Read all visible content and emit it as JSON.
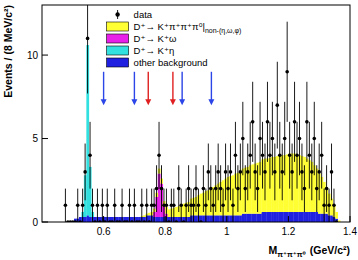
{
  "chart_data": {
    "type": "histogram",
    "stacked": true,
    "y_label": "Events / (8 MeV/c²)",
    "x_label": "M",
    "x_label_sub": "π⁺π⁺π⁰",
    "x_label_unit": "(GeV/c²)",
    "xlim": [
      0.4,
      1.4
    ],
    "ylim": [
      0,
      13
    ],
    "xticks": [
      0.6,
      0.8,
      1,
      1.2,
      1.4
    ],
    "yticks": [
      0,
      5,
      10
    ],
    "legend": "upper left",
    "bins": [
      0.4,
      0.408,
      0.416,
      0.424,
      0.432,
      0.44,
      0.448,
      0.456,
      0.464,
      0.472,
      0.48,
      0.488,
      0.496,
      0.504,
      0.512,
      0.52,
      0.528,
      0.536,
      0.544,
      0.552,
      0.56,
      0.568,
      0.576,
      0.584,
      0.592,
      0.6,
      0.608,
      0.616,
      0.624,
      0.632,
      0.64,
      0.648,
      0.656,
      0.664,
      0.672,
      0.68,
      0.688,
      0.696,
      0.704,
      0.712,
      0.72,
      0.728,
      0.736,
      0.744,
      0.752,
      0.76,
      0.768,
      0.776,
      0.784,
      0.792,
      0.8,
      0.808,
      0.816,
      0.824,
      0.832,
      0.84,
      0.848,
      0.856,
      0.864,
      0.872,
      0.88,
      0.888,
      0.896,
      0.904,
      0.912,
      0.92,
      0.928,
      0.936,
      0.944,
      0.952,
      0.96,
      0.968,
      0.976,
      0.984,
      0.992,
      1.0,
      1.008,
      1.016,
      1.024,
      1.032,
      1.04,
      1.048,
      1.056,
      1.064,
      1.072,
      1.08,
      1.088,
      1.096,
      1.104,
      1.112,
      1.12,
      1.128,
      1.136,
      1.144,
      1.152,
      1.16,
      1.168,
      1.176,
      1.184,
      1.192,
      1.2,
      1.208,
      1.216,
      1.224,
      1.232,
      1.24,
      1.248,
      1.256,
      1.264,
      1.272,
      1.28,
      1.288,
      1.296,
      1.304,
      1.312,
      1.32,
      1.328,
      1.336,
      1.344,
      1.352,
      1.36,
      1.368,
      1.376,
      1.384,
      1.392,
      1.4
    ],
    "series": [
      {
        "name": "data",
        "type": "scatter",
        "marker": "circle",
        "color": "#000000",
        "values": [
          null,
          null,
          null,
          null,
          null,
          null,
          null,
          null,
          null,
          1,
          0,
          0,
          0,
          0,
          1,
          0,
          1,
          3,
          11,
          4,
          1,
          0,
          1,
          0,
          1,
          0,
          1,
          0,
          0,
          1,
          0,
          0,
          1,
          0,
          0,
          1,
          0,
          1,
          0,
          0,
          1,
          0,
          1,
          0,
          1,
          1,
          2,
          4,
          2,
          1,
          1,
          0,
          1,
          1,
          0,
          2,
          1,
          0,
          1,
          2,
          1,
          1,
          2,
          1,
          0,
          2,
          1,
          3,
          2,
          1,
          2,
          3,
          2,
          1,
          3,
          2,
          3,
          1,
          4,
          2,
          3,
          5,
          2,
          3,
          4,
          6,
          3,
          2,
          5,
          4,
          3,
          6,
          4,
          5,
          3,
          7,
          4,
          3,
          5,
          9,
          4,
          3,
          6,
          4,
          5,
          3,
          2,
          6,
          4,
          3,
          5,
          2,
          3,
          4,
          1,
          2,
          1,
          3,
          1,
          0,
          null,
          null,
          null,
          null,
          null
        ],
        "errors": [
          null,
          null,
          null,
          null,
          null,
          null,
          null,
          null,
          null,
          1,
          0,
          0,
          0,
          0,
          1,
          0,
          1,
          1.7,
          3.3,
          2,
          1,
          0,
          1,
          0,
          1,
          0,
          1,
          0,
          0,
          1,
          0,
          0,
          1,
          0,
          0,
          1,
          0,
          1,
          0,
          0,
          1,
          0,
          1,
          0,
          1,
          1,
          1.4,
          2,
          1.4,
          1,
          1,
          0,
          1,
          1,
          0,
          1.4,
          1,
          0,
          1,
          1.4,
          1,
          1,
          1.4,
          1,
          0,
          1.4,
          1,
          1.7,
          1.4,
          1,
          1.4,
          1.7,
          1.4,
          1,
          1.7,
          1.4,
          1.7,
          1,
          2,
          1.4,
          1.7,
          2.2,
          1.4,
          1.7,
          2,
          2.4,
          1.7,
          1.4,
          2.2,
          2,
          1.7,
          2.4,
          2,
          2.2,
          1.7,
          2.6,
          2,
          1.7,
          2.2,
          3,
          2,
          1.7,
          2.4,
          2,
          2.2,
          1.7,
          1.4,
          2.4,
          2,
          1.7,
          2.2,
          1.4,
          1.7,
          2,
          1,
          1.4,
          1,
          1.7,
          1,
          0,
          null,
          null,
          null,
          null,
          null
        ]
      },
      {
        "name": "D⁺→ K⁺π⁺π⁺π⁰|non-(η,ω,φ)",
        "type": "bar",
        "color": "#ffff33",
        "values": [
          0,
          0,
          0,
          0,
          0,
          0,
          0,
          0,
          0,
          0,
          0,
          0,
          0,
          0,
          0,
          0,
          0,
          0,
          0,
          0,
          0,
          0,
          0,
          0,
          0,
          0,
          0,
          0,
          0,
          0,
          0,
          0,
          0,
          0,
          0,
          0,
          0,
          0,
          0,
          0,
          0.05,
          0.1,
          0.1,
          0.15,
          0.2,
          0.2,
          0.25,
          0.3,
          0.3,
          0.35,
          0.4,
          0.45,
          0.5,
          0.55,
          0.6,
          0.65,
          0.7,
          0.8,
          0.85,
          0.9,
          1.0,
          1.05,
          1.1,
          1.2,
          1.3,
          1.35,
          1.45,
          1.5,
          1.6,
          1.7,
          1.8,
          1.9,
          2.0,
          2.1,
          2.2,
          2.3,
          2.35,
          2.4,
          2.5,
          2.55,
          2.6,
          2.7,
          2.75,
          2.8,
          2.9,
          2.95,
          3.0,
          3.05,
          3.1,
          3.15,
          3.2,
          3.2,
          3.25,
          3.3,
          3.3,
          3.35,
          3.4,
          3.4,
          3.4,
          3.45,
          3.5,
          3.5,
          3.5,
          3.45,
          3.4,
          3.35,
          3.3,
          3.2,
          3.1,
          3.0,
          2.8,
          2.6,
          2.4,
          2.2,
          1.9,
          1.6,
          1.3,
          1.0,
          0.7,
          0.4,
          0.1,
          0,
          0,
          0,
          0
        ]
      },
      {
        "name": "D⁺→ K⁺ω",
        "type": "bar",
        "color": "#e81fe8",
        "values": [
          0,
          0,
          0,
          0,
          0,
          0,
          0,
          0,
          0,
          0,
          0,
          0,
          0,
          0,
          0,
          0,
          0,
          0,
          0,
          0,
          0,
          0,
          0,
          0,
          0,
          0,
          0,
          0,
          0,
          0,
          0,
          0,
          0,
          0,
          0,
          0,
          0,
          0,
          0,
          0,
          0,
          0,
          0,
          0,
          0,
          0.3,
          1.2,
          2.6,
          2.0,
          0.6,
          0.2,
          0,
          0,
          0,
          0,
          0,
          0,
          0,
          0,
          0,
          0,
          0,
          0,
          0,
          0,
          0,
          0,
          0,
          0,
          0,
          0,
          0,
          0,
          0,
          0,
          0,
          0,
          0,
          0,
          0,
          0,
          0,
          0,
          0,
          0,
          0,
          0,
          0,
          0,
          0,
          0,
          0,
          0,
          0,
          0,
          0,
          0,
          0,
          0,
          0,
          0,
          0,
          0,
          0,
          0,
          0,
          0,
          0,
          0,
          0,
          0,
          0,
          0,
          0,
          0,
          0,
          0,
          0,
          0,
          0,
          0,
          0,
          0,
          0,
          0
        ]
      },
      {
        "name": "D⁺→ K⁺η",
        "type": "bar",
        "color": "#33e0e0",
        "values": [
          0,
          0,
          0,
          0,
          0,
          0,
          0,
          0,
          0,
          0,
          0,
          0,
          0,
          0,
          0,
          0,
          0.3,
          2.5,
          10.2,
          3.0,
          0.3,
          0,
          0,
          0,
          0,
          0,
          0,
          0,
          0,
          0,
          0,
          0,
          0,
          0,
          0,
          0,
          0,
          0,
          0,
          0,
          0,
          0,
          0,
          0,
          0,
          0,
          0,
          0,
          0,
          0,
          0,
          0,
          0,
          0,
          0,
          0,
          0,
          0,
          0,
          0,
          0,
          0,
          0,
          0,
          0,
          0,
          0,
          0,
          0,
          0,
          0,
          0,
          0,
          0,
          0,
          0,
          0,
          0,
          0,
          0,
          0,
          0,
          0,
          0,
          0,
          0,
          0,
          0,
          0,
          0,
          0,
          0,
          0,
          0,
          0,
          0,
          0,
          0,
          0,
          0,
          0,
          0,
          0,
          0,
          0,
          0,
          0,
          0,
          0,
          0,
          0,
          0,
          0,
          0,
          0,
          0,
          0,
          0,
          0,
          0,
          0,
          0,
          0,
          0,
          0
        ]
      },
      {
        "name": "other background",
        "type": "bar",
        "color": "#2020e0",
        "values": [
          0,
          0,
          0,
          0,
          0,
          0,
          0,
          0,
          0,
          0,
          0,
          0,
          0,
          0.2,
          0.2,
          0.3,
          0.3,
          0.3,
          0.4,
          0.3,
          0.3,
          0.3,
          0.3,
          0.3,
          0.3,
          0.3,
          0.3,
          0.3,
          0.3,
          0.3,
          0.3,
          0.3,
          0.3,
          0.3,
          0.3,
          0.3,
          0.3,
          0.3,
          0.3,
          0.3,
          0.3,
          0.3,
          0.4,
          0.4,
          0.4,
          0.3,
          0.3,
          0.3,
          0.3,
          0.3,
          0.3,
          0.3,
          0.3,
          0.3,
          0.3,
          0.3,
          0.3,
          0.3,
          0.3,
          0.3,
          0.4,
          0.4,
          0.4,
          0.4,
          0.4,
          0.4,
          0.4,
          0.4,
          0.4,
          0.4,
          0.4,
          0.4,
          0.4,
          0.4,
          0.4,
          0.4,
          0.4,
          0.4,
          0.4,
          0.4,
          0.4,
          0.5,
          0.5,
          0.5,
          0.5,
          0.5,
          0.5,
          0.5,
          0.5,
          0.6,
          0.6,
          0.6,
          0.6,
          0.6,
          0.6,
          0.6,
          0.6,
          0.6,
          0.6,
          0.6,
          0.6,
          0.6,
          0.6,
          0.6,
          0.6,
          0.6,
          0.6,
          0.6,
          0.6,
          0.6,
          0.6,
          0.6,
          0.5,
          0.5,
          0.5,
          0.5,
          0.4,
          0.4,
          0.3,
          0.2,
          0,
          0,
          0,
          0,
          0
        ]
      }
    ],
    "arrows": [
      {
        "x": 0.6,
        "y": [
          9,
          7
        ],
        "color": "#2b45e8"
      },
      {
        "x": 0.7,
        "y": [
          9,
          7
        ],
        "color": "#2b45e8"
      },
      {
        "x": 0.745,
        "y": [
          9,
          7
        ],
        "color": "#e02020"
      },
      {
        "x": 0.825,
        "y": [
          9,
          7
        ],
        "color": "#e02020"
      },
      {
        "x": 0.855,
        "y": [
          9,
          7
        ],
        "color": "#2b45e8"
      },
      {
        "x": 0.95,
        "y": [
          9,
          7
        ],
        "color": "#2b45e8"
      }
    ]
  }
}
